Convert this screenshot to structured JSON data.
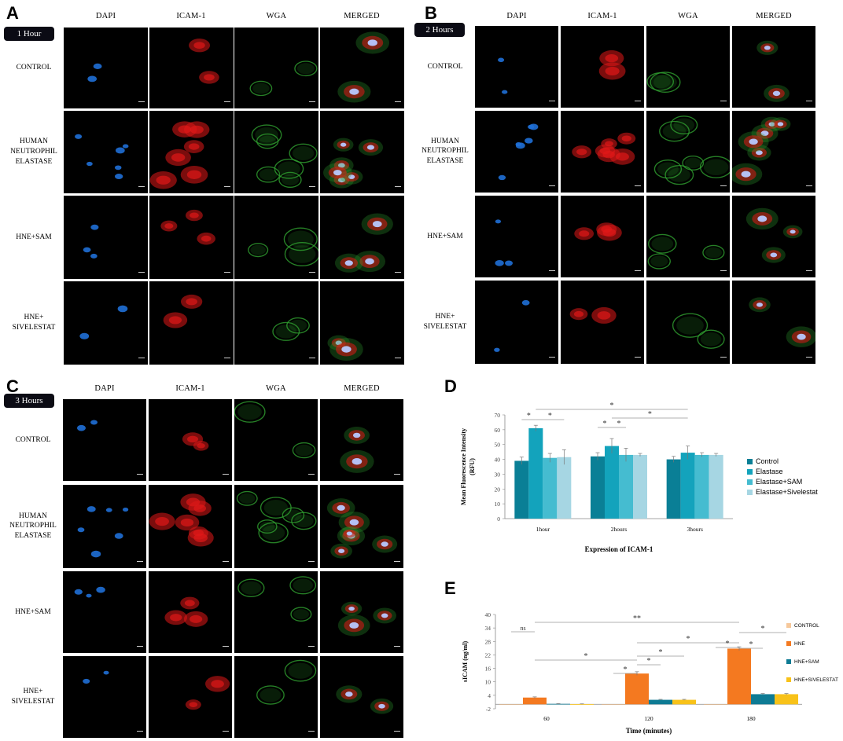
{
  "panels": [
    {
      "letter": "A",
      "badge": "1 Hour"
    },
    {
      "letter": "B",
      "badge": "2 Hours"
    },
    {
      "letter": "C",
      "badge": "3 Hours"
    }
  ],
  "chart_letters": {
    "d": "D",
    "e": "E"
  },
  "columns": [
    "DAPI",
    "ICAM-1",
    "WGA",
    "MERGED"
  ],
  "rows": [
    "CONTROL",
    "HUMAN\nNEUTROPHIL\nELASTASE",
    "HNE+SAM",
    "HNE+\nSIVELESTAT"
  ],
  "colors": {
    "dapi": "#1f6fd6",
    "icam": "#e01818",
    "wga": "#2fa02f",
    "d_control": "#0a7f96",
    "d_elastase": "#13a3bc",
    "d_sam": "#45bcd0",
    "d_sivelestat": "#a6d6e3",
    "e_control": "#f6c89b",
    "e_hne": "#f47920",
    "e_sam": "#0e7b94",
    "e_sivelestat": "#f8c219"
  },
  "chart_data": [
    {
      "type": "bar",
      "categories": [
        "1hour",
        "2hours",
        "3hours"
      ],
      "series": [
        {
          "name": "Control",
          "values": [
            39,
            42,
            40
          ],
          "errors": [
            2.5,
            2.5,
            2
          ]
        },
        {
          "name": "Elastase",
          "values": [
            61,
            49,
            44.5
          ],
          "errors": [
            2,
            5,
            4.5
          ]
        },
        {
          "name": "Elastase+SAM",
          "values": [
            41,
            43,
            43
          ],
          "errors": [
            3,
            4.5,
            1.5
          ]
        },
        {
          "name": "Elastase+Sivelestat",
          "values": [
            41.5,
            43,
            43
          ],
          "errors": [
            5,
            1,
            1
          ]
        }
      ],
      "ylabel": "Mean Fluorescence Intensity\n(RFU)",
      "xlabel": "Expression of  ICAM-1",
      "ylim": [
        0,
        70
      ],
      "yticks": [
        0,
        10,
        20,
        30,
        40,
        50,
        60,
        70
      ],
      "legend": "right",
      "annotations": [
        {
          "text": "*",
          "from": [
            0,
            0
          ],
          "to": [
            0,
            1
          ]
        },
        {
          "text": "*",
          "from": [
            0,
            1
          ],
          "to": [
            0,
            3
          ]
        },
        {
          "text": "*",
          "from": [
            0,
            1
          ],
          "to": [
            2,
            1
          ]
        },
        {
          "text": "*",
          "from": [
            1,
            0
          ],
          "to": [
            1,
            1
          ]
        },
        {
          "text": "*",
          "from": [
            1,
            1
          ],
          "to": [
            1,
            2
          ]
        },
        {
          "text": "*",
          "from": [
            1,
            1
          ],
          "to": [
            2,
            1
          ]
        }
      ]
    },
    {
      "type": "bar",
      "categories": [
        "60",
        "120",
        "180"
      ],
      "series": [
        {
          "name": "CONTROL",
          "values": [
            0,
            0,
            0
          ],
          "errors": [
            0,
            0,
            0
          ]
        },
        {
          "name": "HNE",
          "values": [
            3,
            13.7,
            24.8
          ],
          "errors": [
            0.3,
            0.8,
            0.8
          ]
        },
        {
          "name": "HNE+SAM",
          "values": [
            0.2,
            2,
            4.5
          ],
          "errors": [
            0.1,
            0.2,
            0.3
          ]
        },
        {
          "name": "HNE+SIVELESTAT",
          "values": [
            0.1,
            2,
            4.5
          ],
          "errors": [
            0.1,
            0.2,
            0.3
          ]
        }
      ],
      "ylabel": "sICAM (ng/ml)",
      "xlabel": "Time (minutes)",
      "ylim": [
        -2,
        40
      ],
      "yticks": [
        -2,
        4,
        10,
        16,
        22,
        28,
        34,
        40
      ],
      "legend": "right",
      "annotations": [
        {
          "text": "ns",
          "from": [
            0,
            0
          ],
          "to": [
            0,
            1
          ]
        },
        {
          "text": "*",
          "from": [
            0,
            1
          ],
          "to": [
            1,
            1
          ]
        },
        {
          "text": "**",
          "from": [
            0,
            1
          ],
          "to": [
            2,
            1
          ]
        },
        {
          "text": "*",
          "from": [
            1,
            0
          ],
          "to": [
            1,
            1
          ]
        },
        {
          "text": "*",
          "from": [
            1,
            1
          ],
          "to": [
            1,
            2
          ]
        },
        {
          "text": "*",
          "from": [
            1,
            1
          ],
          "to": [
            1,
            3
          ]
        },
        {
          "text": "*",
          "from": [
            1,
            1
          ],
          "to": [
            2,
            1
          ]
        },
        {
          "text": "*",
          "from": [
            2,
            0
          ],
          "to": [
            2,
            1
          ]
        },
        {
          "text": "*",
          "from": [
            2,
            1
          ],
          "to": [
            2,
            2
          ]
        },
        {
          "text": "*",
          "from": [
            2,
            1
          ],
          "to": [
            2,
            3
          ]
        }
      ]
    }
  ]
}
